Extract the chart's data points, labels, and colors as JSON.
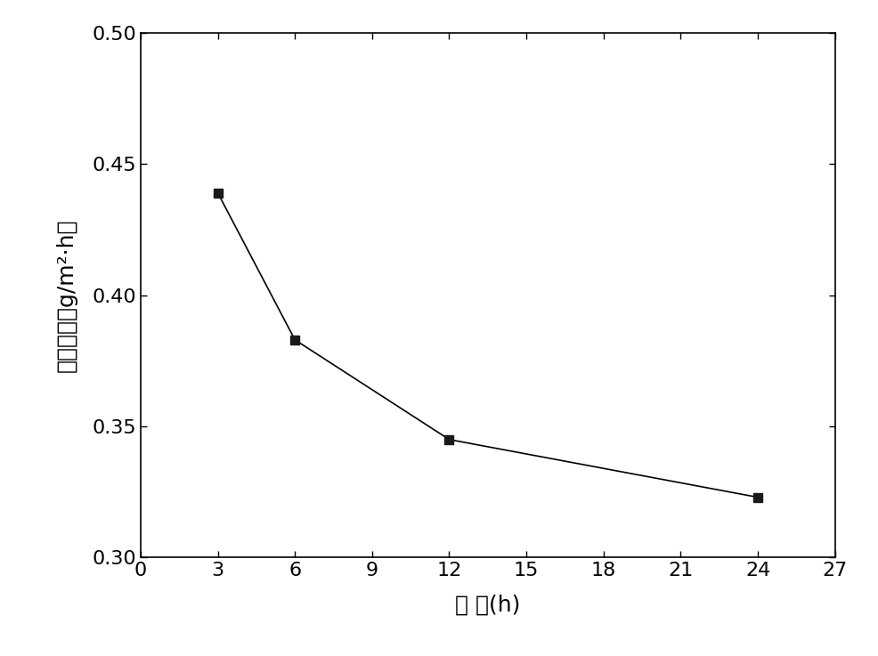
{
  "x": [
    3,
    6,
    12,
    24
  ],
  "y": [
    0.439,
    0.383,
    0.345,
    0.323
  ],
  "xlim": [
    0,
    27
  ],
  "ylim": [
    0.3,
    0.5
  ],
  "xticks": [
    0,
    3,
    6,
    9,
    12,
    15,
    18,
    21,
    24,
    27
  ],
  "yticks": [
    0.3,
    0.35,
    0.4,
    0.45,
    0.5
  ],
  "xlabel": "时 间(h)",
  "ylabel": "腐蚀速率（g/m²·h）",
  "line_color": "#000000",
  "marker": "s",
  "marker_color": "#1a1a1a",
  "marker_size": 7,
  "line_width": 1.2,
  "background_color": "#ffffff",
  "xlabel_fontsize": 18,
  "ylabel_fontsize": 18,
  "tick_fontsize": 16
}
